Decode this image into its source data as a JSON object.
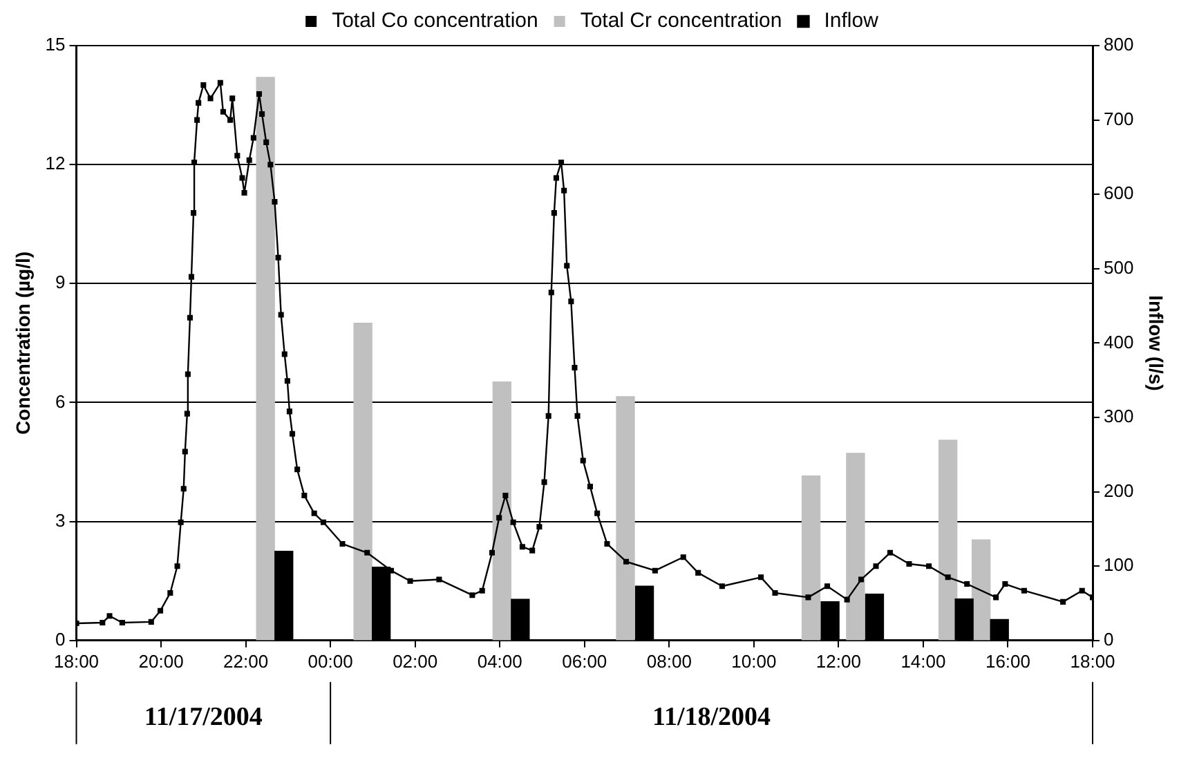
{
  "chart_data": {
    "type": "bar",
    "ylabel": "Concentration (µg/l)",
    "y2label": "Inflow (l/s)",
    "xlim": [
      "2004-11-17T18:00",
      "2004-11-18T18:00"
    ],
    "xticks": [
      {
        "value": "2004-11-17T18:00",
        "label": "18:00"
      },
      {
        "value": "2004-11-17T20:00",
        "label": "20:00"
      },
      {
        "value": "2004-11-17T22:00",
        "label": "22:00"
      },
      {
        "value": "2004-11-18T00:00",
        "label": "00:00"
      },
      {
        "value": "2004-11-18T02:00",
        "label": "02:00"
      },
      {
        "value": "2004-11-18T04:00",
        "label": "04:00"
      },
      {
        "value": "2004-11-18T06:00",
        "label": "06:00"
      },
      {
        "value": "2004-11-18T08:00",
        "label": "08:00"
      },
      {
        "value": "2004-11-18T10:00",
        "label": "10:00"
      },
      {
        "value": "2004-11-18T12:00",
        "label": "12:00"
      },
      {
        "value": "2004-11-18T14:00",
        "label": "14:00"
      },
      {
        "value": "2004-11-18T16:00",
        "label": "16:00"
      },
      {
        "value": "2004-11-18T18:00",
        "label": "18:00"
      }
    ],
    "ylim": [
      0,
      15
    ],
    "yticks": [
      0,
      3,
      6,
      9,
      12,
      15
    ],
    "y2lim": [
      0,
      800
    ],
    "y2ticks": [
      0,
      100,
      200,
      300,
      400,
      500,
      600,
      700,
      800
    ],
    "grid": "y",
    "legend": "top",
    "marker": "square",
    "line_style": "solid",
    "annotations": [
      "11/17/2004",
      "11/18/2004"
    ],
    "series": [
      {
        "name": "Total Co concentration",
        "color": "#000000",
        "x": [
          "2004-11-17T22:54",
          "2004-11-18T01:12",
          "2004-11-18T04:29",
          "2004-11-18T07:25",
          "2004-11-18T11:48",
          "2004-11-18T12:51",
          "2004-11-18T14:58",
          "2004-11-18T15:48"
        ],
        "values": [
          2.25,
          1.85,
          1.04,
          1.37,
          0.98,
          1.17,
          1.05,
          0.53
        ]
      },
      {
        "name": "Total Cr concentration",
        "color": "#c0c0c0",
        "x": [
          "2004-11-17T22:28",
          "2004-11-18T00:46",
          "2004-11-18T04:03",
          "2004-11-18T06:58",
          "2004-11-18T11:21",
          "2004-11-18T12:24",
          "2004-11-18T14:35",
          "2004-11-18T15:22"
        ],
        "values": [
          14.2,
          8.0,
          6.52,
          6.15,
          4.15,
          4.72,
          5.05,
          2.54
        ]
      },
      {
        "name": "Inflow",
        "type": "line",
        "axis": "y2",
        "color": "#000000",
        "x": [
          "2004-11-17T18:00",
          "2004-11-17T18:37",
          "2004-11-17T18:47",
          "2004-11-17T19:05",
          "2004-11-17T19:46",
          "2004-11-17T19:59",
          "2004-11-17T20:13",
          "2004-11-17T20:23",
          "2004-11-17T20:28",
          "2004-11-17T20:32",
          "2004-11-17T20:34",
          "2004-11-17T20:37",
          "2004-11-17T20:38",
          "2004-11-17T20:41",
          "2004-11-17T20:43",
          "2004-11-17T20:46",
          "2004-11-17T20:47",
          "2004-11-17T20:51",
          "2004-11-17T20:53",
          "2004-11-17T21:00",
          "2004-11-17T21:10",
          "2004-11-17T21:24",
          "2004-11-17T21:28",
          "2004-11-17T21:38",
          "2004-11-17T21:41",
          "2004-11-17T21:48",
          "2004-11-17T21:55",
          "2004-11-17T21:58",
          "2004-11-17T22:05",
          "2004-11-17T22:11",
          "2004-11-17T22:19",
          "2004-11-17T22:23",
          "2004-11-17T22:29",
          "2004-11-17T22:35",
          "2004-11-17T22:41",
          "2004-11-17T22:46",
          "2004-11-17T22:50",
          "2004-11-17T22:55",
          "2004-11-17T22:59",
          "2004-11-17T23:02",
          "2004-11-17T23:06",
          "2004-11-17T23:13",
          "2004-11-17T23:23",
          "2004-11-17T23:37",
          "2004-11-17T23:50",
          "2004-11-18T00:17",
          "2004-11-18T00:52",
          "2004-11-18T01:26",
          "2004-11-18T01:53",
          "2004-11-18T02:34",
          "2004-11-18T03:21",
          "2004-11-18T03:35",
          "2004-11-18T03:49",
          "2004-11-18T03:59",
          "2004-11-18T04:08",
          "2004-11-18T04:19",
          "2004-11-18T04:32",
          "2004-11-18T04:46",
          "2004-11-18T04:56",
          "2004-11-18T05:03",
          "2004-11-18T05:09",
          "2004-11-18T05:13",
          "2004-11-18T05:17",
          "2004-11-18T05:20",
          "2004-11-18T05:27",
          "2004-11-18T05:31",
          "2004-11-18T05:35",
          "2004-11-18T05:41",
          "2004-11-18T05:46",
          "2004-11-18T05:50",
          "2004-11-18T05:58",
          "2004-11-18T06:08",
          "2004-11-18T06:18",
          "2004-11-18T06:32",
          "2004-11-18T06:59",
          "2004-11-18T07:40",
          "2004-11-18T08:20",
          "2004-11-18T08:41",
          "2004-11-18T09:15",
          "2004-11-18T10:10",
          "2004-11-18T10:30",
          "2004-11-18T11:17",
          "2004-11-18T11:44",
          "2004-11-18T12:12",
          "2004-11-18T12:32",
          "2004-11-18T12:53",
          "2004-11-18T13:13",
          "2004-11-18T13:40",
          "2004-11-18T14:08",
          "2004-11-18T14:35",
          "2004-11-18T15:02",
          "2004-11-18T15:43",
          "2004-11-18T15:56",
          "2004-11-18T16:23",
          "2004-11-18T17:18",
          "2004-11-18T17:45",
          "2004-11-18T18:00"
        ],
        "values": [
          23,
          24,
          33,
          24,
          25,
          40,
          64,
          100,
          159,
          204,
          254,
          305,
          358,
          434,
          489,
          575,
          643,
          700,
          723,
          747,
          729,
          750,
          711,
          700,
          729,
          652,
          622,
          602,
          646,
          676,
          735,
          708,
          670,
          640,
          590,
          515,
          438,
          385,
          349,
          308,
          278,
          230,
          195,
          171,
          159,
          130,
          118,
          94,
          80,
          82,
          61,
          67,
          118,
          165,
          195,
          159,
          126,
          121,
          153,
          213,
          302,
          468,
          575,
          622,
          643,
          605,
          504,
          456,
          367,
          302,
          242,
          207,
          171,
          130,
          106,
          94,
          112,
          91,
          73,
          85,
          64,
          58,
          73,
          55,
          82,
          100,
          118,
          103,
          100,
          85,
          76,
          58,
          76,
          67,
          52,
          67,
          58
        ]
      }
    ]
  }
}
